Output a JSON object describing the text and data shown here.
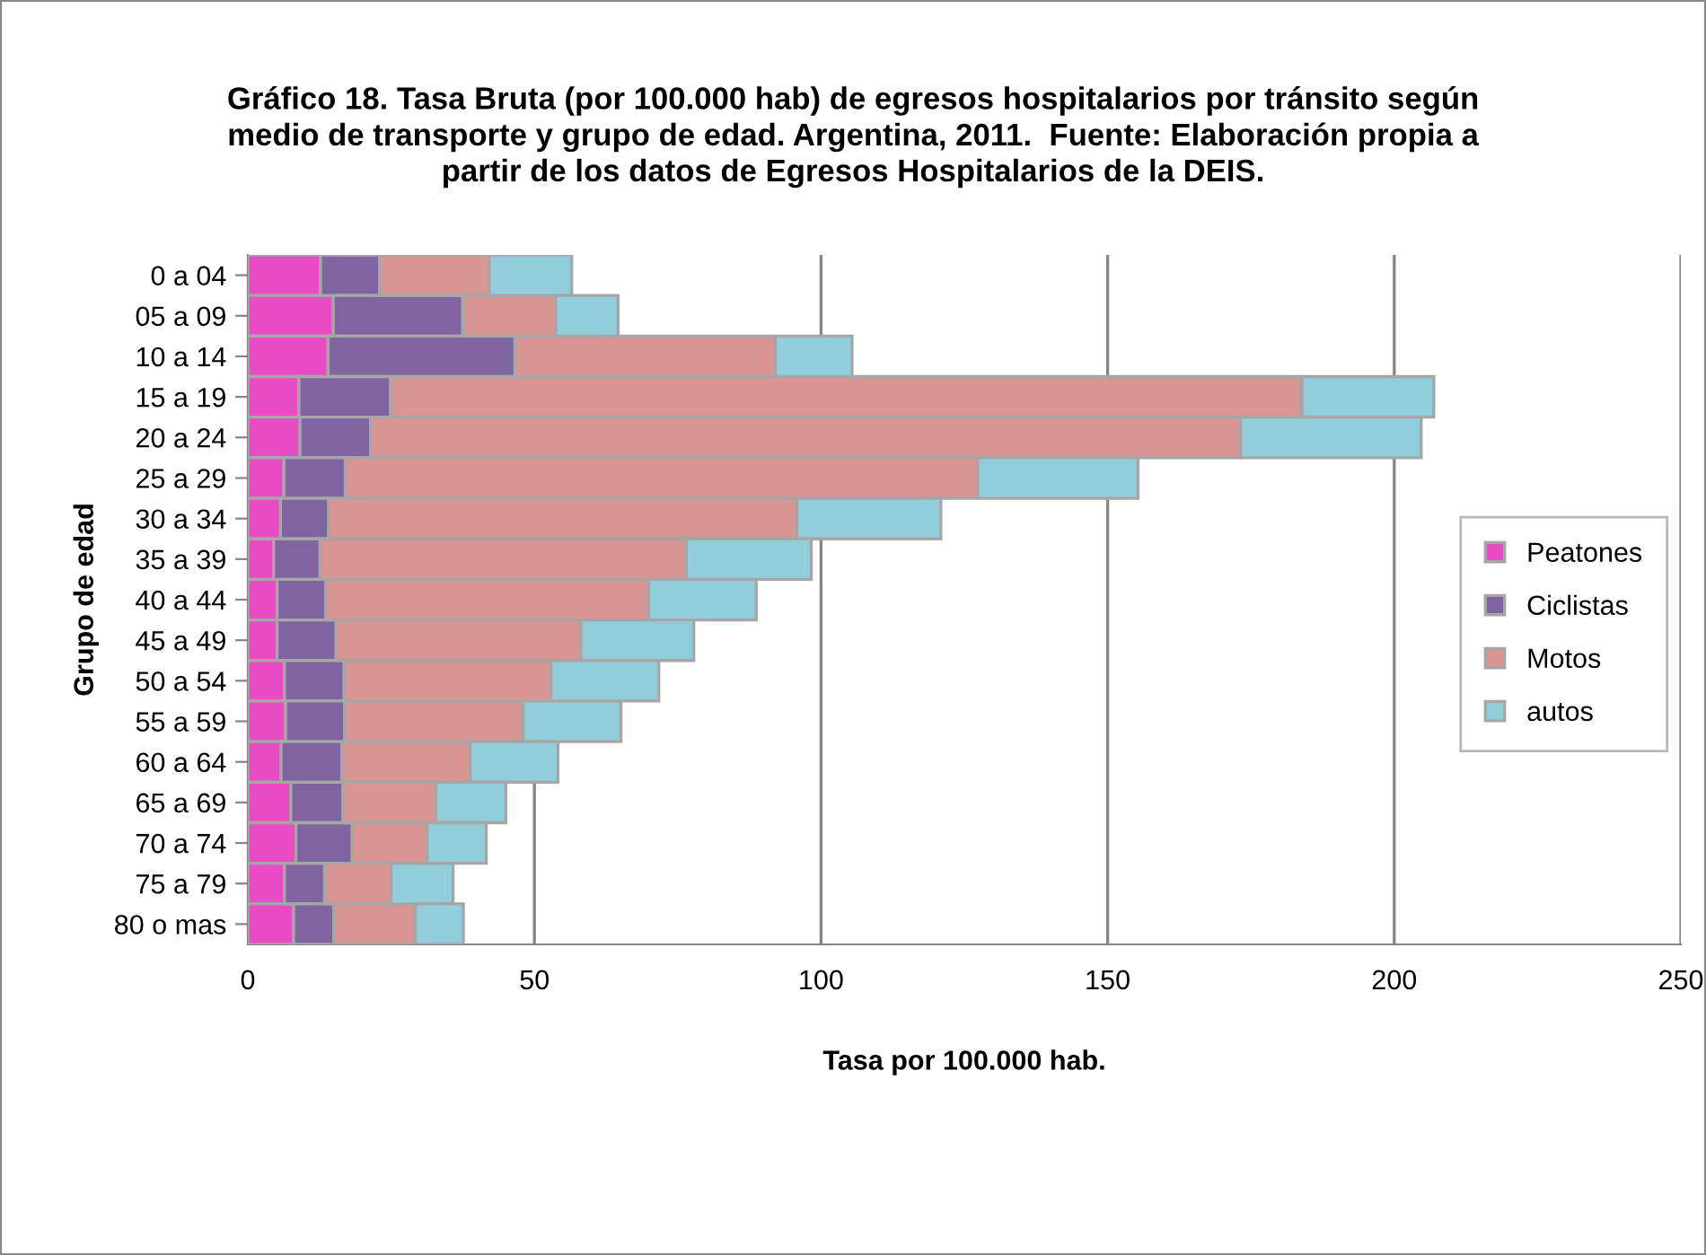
{
  "chart_data": {
    "type": "bar",
    "orientation": "horizontal",
    "stacked": true,
    "title": "Gráfico 18. Tasa Bruta (por 100.000 hab) de egresos hospitalarios por tránsito según\nmedio de transporte y grupo de edad. Argentina, 2011.  Fuente: Elaboración propia a\npartir de los datos de Egresos Hospitalarios de la DEIS.",
    "xlabel": "Tasa por 100.000 hab.",
    "ylabel": "Grupo de edad",
    "categories": [
      "0 a 04",
      "05 a 09",
      "10 a 14",
      "15 a 19",
      "20 a 24",
      "25 a 29",
      "30 a 34",
      "35 a 39",
      "40 a 44",
      "45 a 49",
      "50 a 54",
      "55 a 59",
      "60 a 64",
      "65 a 69",
      "70 a 74",
      "75 a 79",
      "80 o mas"
    ],
    "series": [
      {
        "name": "Peatones",
        "color": "#e84bc4",
        "values": [
          12.7,
          14.9,
          14.0,
          8.9,
          9.1,
          6.3,
          5.7,
          4.5,
          5.1,
          5.1,
          6.4,
          6.6,
          5.8,
          7.5,
          8.4,
          6.4,
          8.0
        ]
      },
      {
        "name": "Ciclistas",
        "color": "#8064a2",
        "values": [
          10.3,
          22.6,
          32.6,
          16.0,
          12.3,
          10.7,
          8.4,
          8.1,
          8.5,
          10.3,
          10.4,
          10.3,
          10.6,
          9.1,
          9.8,
          7.0,
          7.0
        ]
      },
      {
        "name": "Motos",
        "color": "#d99594",
        "values": [
          19.1,
          16.2,
          45.4,
          159.0,
          151.8,
          110.3,
          81.7,
          63.9,
          56.3,
          42.7,
          36.1,
          31.1,
          22.4,
          16.2,
          13.1,
          11.6,
          14.2
        ]
      },
      {
        "name": "autos",
        "color": "#92cddc",
        "values": [
          14.4,
          10.9,
          13.4,
          23.0,
          31.5,
          28.0,
          25.1,
          21.8,
          18.8,
          19.7,
          18.8,
          17.1,
          15.3,
          12.2,
          10.3,
          10.8,
          8.4
        ]
      }
    ],
    "xlim": [
      0,
      250
    ],
    "xticks": [
      0,
      50,
      100,
      150,
      200,
      250
    ],
    "grid": "x",
    "legend": "right"
  }
}
